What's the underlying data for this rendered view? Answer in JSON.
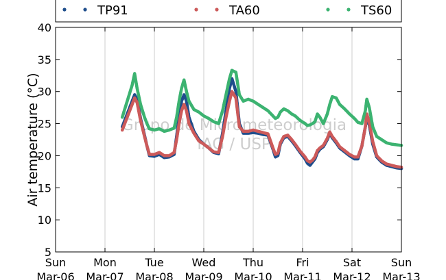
{
  "chart_data": {
    "type": "scatter",
    "ylabel": "Air temperature (°C)",
    "xlabel": "",
    "ylim": [
      5,
      40
    ],
    "yticks": [
      5,
      10,
      15,
      20,
      25,
      30,
      35,
      40
    ],
    "xlim": [
      0,
      7
    ],
    "xticks": [
      {
        "day": "Sun",
        "date": "Mar-06",
        "x": 0
      },
      {
        "day": "Mon",
        "date": "Mar-07",
        "x": 1
      },
      {
        "day": "Tue",
        "date": "Mar-08",
        "x": 2
      },
      {
        "day": "Wed",
        "date": "Mar-09",
        "x": 3
      },
      {
        "day": "Thu",
        "date": "Mar-10",
        "x": 4
      },
      {
        "day": "Fri",
        "date": "Mar-11",
        "x": 5
      },
      {
        "day": "Sat",
        "date": "Mar-12",
        "x": 6
      },
      {
        "day": "Sun",
        "date": "Mar-13",
        "x": 7
      }
    ],
    "grid": "vertical",
    "legend": "top",
    "watermark": [
      "Grupo de Micrometeorologia",
      "IAG / USP"
    ],
    "series": [
      {
        "name": "TP91",
        "color": "#1f4e8c",
        "points": [
          [
            1.35,
            24.5
          ],
          [
            1.45,
            26.5
          ],
          [
            1.55,
            28.5
          ],
          [
            1.6,
            29.5
          ],
          [
            1.65,
            28.8
          ],
          [
            1.72,
            25.8
          ],
          [
            1.8,
            23.2
          ],
          [
            1.85,
            21.5
          ],
          [
            1.9,
            20.0
          ],
          [
            2.0,
            19.9
          ],
          [
            2.1,
            20.2
          ],
          [
            2.2,
            19.7
          ],
          [
            2.3,
            19.8
          ],
          [
            2.4,
            20.2
          ],
          [
            2.45,
            23.0
          ],
          [
            2.5,
            26.0
          ],
          [
            2.55,
            28.5
          ],
          [
            2.6,
            29.5
          ],
          [
            2.65,
            28.5
          ],
          [
            2.7,
            26.0
          ],
          [
            2.8,
            23.8
          ],
          [
            2.9,
            22.5
          ],
          [
            3.0,
            21.8
          ],
          [
            3.1,
            21.2
          ],
          [
            3.2,
            20.5
          ],
          [
            3.3,
            20.3
          ],
          [
            3.38,
            23.5
          ],
          [
            3.45,
            27.0
          ],
          [
            3.52,
            30.5
          ],
          [
            3.57,
            32.0
          ],
          [
            3.65,
            30.0
          ],
          [
            3.72,
            25.0
          ],
          [
            3.8,
            23.5
          ],
          [
            3.9,
            23.5
          ],
          [
            4.0,
            23.6
          ],
          [
            4.1,
            23.5
          ],
          [
            4.2,
            23.3
          ],
          [
            4.3,
            23.2
          ],
          [
            4.4,
            21.0
          ],
          [
            4.45,
            19.8
          ],
          [
            4.5,
            20.0
          ],
          [
            4.55,
            21.8
          ],
          [
            4.62,
            22.8
          ],
          [
            4.7,
            23.0
          ],
          [
            4.78,
            22.3
          ],
          [
            4.85,
            21.6
          ],
          [
            4.95,
            20.5
          ],
          [
            5.05,
            19.5
          ],
          [
            5.1,
            18.8
          ],
          [
            5.15,
            18.5
          ],
          [
            5.2,
            19.0
          ],
          [
            5.25,
            19.5
          ],
          [
            5.3,
            20.5
          ],
          [
            5.35,
            21.0
          ],
          [
            5.42,
            21.4
          ],
          [
            5.5,
            22.5
          ],
          [
            5.55,
            23.5
          ],
          [
            5.6,
            22.8
          ],
          [
            5.68,
            22.0
          ],
          [
            5.75,
            21.2
          ],
          [
            5.85,
            20.6
          ],
          [
            5.95,
            20.0
          ],
          [
            6.05,
            19.5
          ],
          [
            6.12,
            19.5
          ],
          [
            6.2,
            21.5
          ],
          [
            6.27,
            24.5
          ],
          [
            6.3,
            25.8
          ],
          [
            6.35,
            24.8
          ],
          [
            6.42,
            21.8
          ],
          [
            6.5,
            19.8
          ],
          [
            6.6,
            19.0
          ],
          [
            6.7,
            18.5
          ],
          [
            6.8,
            18.3
          ],
          [
            6.9,
            18.1
          ],
          [
            7.0,
            18.0
          ]
        ]
      },
      {
        "name": "TA60",
        "color": "#cc5a5a",
        "points": [
          [
            1.35,
            24.0
          ],
          [
            1.45,
            26.0
          ],
          [
            1.55,
            28.0
          ],
          [
            1.6,
            29.0
          ],
          [
            1.65,
            28.3
          ],
          [
            1.72,
            25.5
          ],
          [
            1.8,
            23.0
          ],
          [
            1.85,
            21.5
          ],
          [
            1.9,
            20.2
          ],
          [
            2.0,
            20.2
          ],
          [
            2.1,
            20.5
          ],
          [
            2.2,
            20.0
          ],
          [
            2.3,
            20.0
          ],
          [
            2.4,
            20.5
          ],
          [
            2.45,
            22.5
          ],
          [
            2.5,
            25.0
          ],
          [
            2.55,
            27.0
          ],
          [
            2.6,
            28.0
          ],
          [
            2.65,
            27.0
          ],
          [
            2.7,
            25.0
          ],
          [
            2.8,
            23.5
          ],
          [
            2.9,
            22.3
          ],
          [
            3.0,
            21.8
          ],
          [
            3.1,
            21.2
          ],
          [
            3.2,
            20.6
          ],
          [
            3.3,
            20.5
          ],
          [
            3.38,
            23.0
          ],
          [
            3.45,
            26.0
          ],
          [
            3.52,
            28.5
          ],
          [
            3.57,
            30.0
          ],
          [
            3.65,
            29.0
          ],
          [
            3.72,
            24.5
          ],
          [
            3.8,
            23.8
          ],
          [
            3.9,
            23.8
          ],
          [
            4.0,
            24.0
          ],
          [
            4.1,
            23.8
          ],
          [
            4.2,
            23.6
          ],
          [
            4.3,
            23.4
          ],
          [
            4.4,
            21.2
          ],
          [
            4.45,
            20.2
          ],
          [
            4.5,
            20.4
          ],
          [
            4.55,
            22.0
          ],
          [
            4.62,
            23.0
          ],
          [
            4.7,
            23.2
          ],
          [
            4.78,
            22.5
          ],
          [
            4.85,
            21.8
          ],
          [
            4.95,
            20.7
          ],
          [
            5.05,
            19.8
          ],
          [
            5.1,
            19.2
          ],
          [
            5.15,
            19.0
          ],
          [
            5.2,
            19.3
          ],
          [
            5.25,
            19.8
          ],
          [
            5.3,
            20.8
          ],
          [
            5.35,
            21.2
          ],
          [
            5.42,
            21.6
          ],
          [
            5.5,
            22.7
          ],
          [
            5.55,
            23.7
          ],
          [
            5.6,
            23.0
          ],
          [
            5.68,
            22.2
          ],
          [
            5.75,
            21.4
          ],
          [
            5.85,
            20.8
          ],
          [
            5.95,
            20.2
          ],
          [
            6.05,
            19.8
          ],
          [
            6.12,
            19.8
          ],
          [
            6.2,
            21.5
          ],
          [
            6.27,
            24.5
          ],
          [
            6.3,
            26.5
          ],
          [
            6.35,
            25.2
          ],
          [
            6.42,
            22.2
          ],
          [
            6.5,
            20.0
          ],
          [
            6.6,
            19.2
          ],
          [
            6.7,
            18.7
          ],
          [
            6.8,
            18.5
          ],
          [
            6.9,
            18.3
          ],
          [
            7.0,
            18.2
          ]
        ]
      },
      {
        "name": "TS60",
        "color": "#3cb371",
        "points": [
          [
            1.35,
            26.0
          ],
          [
            1.45,
            28.5
          ],
          [
            1.55,
            31.0
          ],
          [
            1.6,
            32.8
          ],
          [
            1.65,
            30.5
          ],
          [
            1.72,
            28.0
          ],
          [
            1.8,
            26.0
          ],
          [
            1.85,
            25.0
          ],
          [
            1.9,
            24.2
          ],
          [
            2.0,
            24.0
          ],
          [
            2.1,
            24.2
          ],
          [
            2.2,
            23.8
          ],
          [
            2.3,
            24.0
          ],
          [
            2.4,
            24.3
          ],
          [
            2.45,
            26.0
          ],
          [
            2.5,
            28.5
          ],
          [
            2.55,
            30.5
          ],
          [
            2.6,
            31.8
          ],
          [
            2.65,
            30.0
          ],
          [
            2.7,
            28.5
          ],
          [
            2.8,
            27.2
          ],
          [
            2.9,
            26.8
          ],
          [
            3.0,
            26.2
          ],
          [
            3.1,
            25.8
          ],
          [
            3.2,
            25.3
          ],
          [
            3.3,
            25.0
          ],
          [
            3.38,
            27.0
          ],
          [
            3.45,
            29.5
          ],
          [
            3.52,
            32.0
          ],
          [
            3.57,
            33.3
          ],
          [
            3.65,
            33.0
          ],
          [
            3.72,
            29.5
          ],
          [
            3.8,
            28.5
          ],
          [
            3.9,
            28.8
          ],
          [
            4.0,
            28.5
          ],
          [
            4.1,
            28.0
          ],
          [
            4.2,
            27.5
          ],
          [
            4.3,
            27.0
          ],
          [
            4.4,
            26.2
          ],
          [
            4.45,
            25.8
          ],
          [
            4.5,
            26.0
          ],
          [
            4.55,
            26.8
          ],
          [
            4.62,
            27.3
          ],
          [
            4.7,
            27.0
          ],
          [
            4.78,
            26.5
          ],
          [
            4.85,
            26.2
          ],
          [
            4.95,
            25.5
          ],
          [
            5.05,
            25.0
          ],
          [
            5.1,
            24.7
          ],
          [
            5.15,
            24.8
          ],
          [
            5.2,
            25.0
          ],
          [
            5.25,
            25.3
          ],
          [
            5.3,
            26.5
          ],
          [
            5.35,
            26.0
          ],
          [
            5.42,
            25.0
          ],
          [
            5.5,
            26.5
          ],
          [
            5.55,
            28.0
          ],
          [
            5.6,
            29.2
          ],
          [
            5.68,
            29.0
          ],
          [
            5.75,
            28.0
          ],
          [
            5.85,
            27.3
          ],
          [
            5.95,
            26.5
          ],
          [
            6.05,
            25.8
          ],
          [
            6.12,
            25.2
          ],
          [
            6.2,
            25.0
          ],
          [
            6.27,
            27.0
          ],
          [
            6.3,
            28.8
          ],
          [
            6.35,
            27.5
          ],
          [
            6.42,
            24.5
          ],
          [
            6.5,
            23.0
          ],
          [
            6.6,
            22.5
          ],
          [
            6.7,
            22.0
          ],
          [
            6.8,
            21.8
          ],
          [
            6.9,
            21.7
          ],
          [
            7.0,
            21.6
          ]
        ]
      }
    ]
  }
}
